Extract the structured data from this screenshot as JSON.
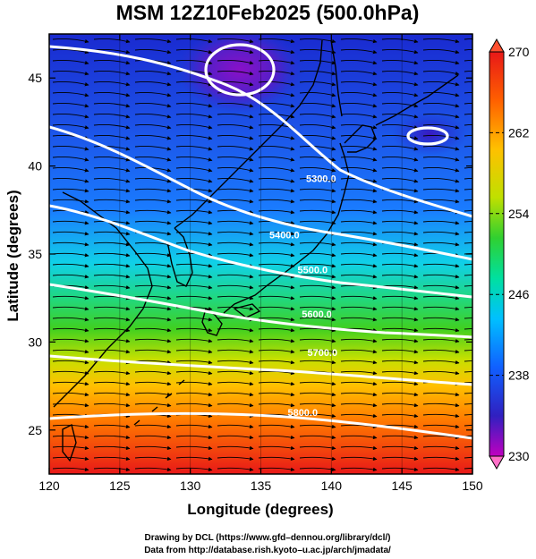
{
  "title": "MSM 12Z10Feb2025 (500.0hPa)",
  "x_axis": {
    "label": "Longitude (degrees)",
    "range": [
      120,
      150
    ],
    "ticks": [
      "120",
      "125",
      "130",
      "135",
      "140",
      "145",
      "150"
    ]
  },
  "y_axis": {
    "label": "Latitude  (degrees)",
    "range": [
      22.5,
      47.5
    ],
    "ticks": [
      "25",
      "30",
      "35",
      "40",
      "45"
    ]
  },
  "colorbar": {
    "ticks": [
      "270",
      "262",
      "254",
      "246",
      "238",
      "230"
    ],
    "range": [
      230,
      270
    ],
    "colors": [
      "#c000c0",
      "#3020c0",
      "#1060ff",
      "#00c0ff",
      "#00e0a0",
      "#20d020",
      "#c0e000",
      "#ffc000",
      "#ff6000",
      "#e81010"
    ]
  },
  "height_contours": [
    {
      "label": "5300.0",
      "lon": 138.2,
      "lat": 39.1
    },
    {
      "label": "5400.0",
      "lon": 135.6,
      "lat": 35.9
    },
    {
      "label": "5500.0",
      "lon": 137.6,
      "lat": 33.9
    },
    {
      "label": "5600.0",
      "lon": 137.9,
      "lat": 31.4
    },
    {
      "label": "5700.0",
      "lon": 138.3,
      "lat": 29.2
    },
    {
      "label": "5800.0",
      "lon": 136.9,
      "lat": 25.8
    }
  ],
  "credits": [
    "Drawing by DCL (https://www.gfd–dennou.org/library/dcl/)",
    "Data from http://database.rish.kyoto–u.ac.jp/arch/jmadata/"
  ]
}
